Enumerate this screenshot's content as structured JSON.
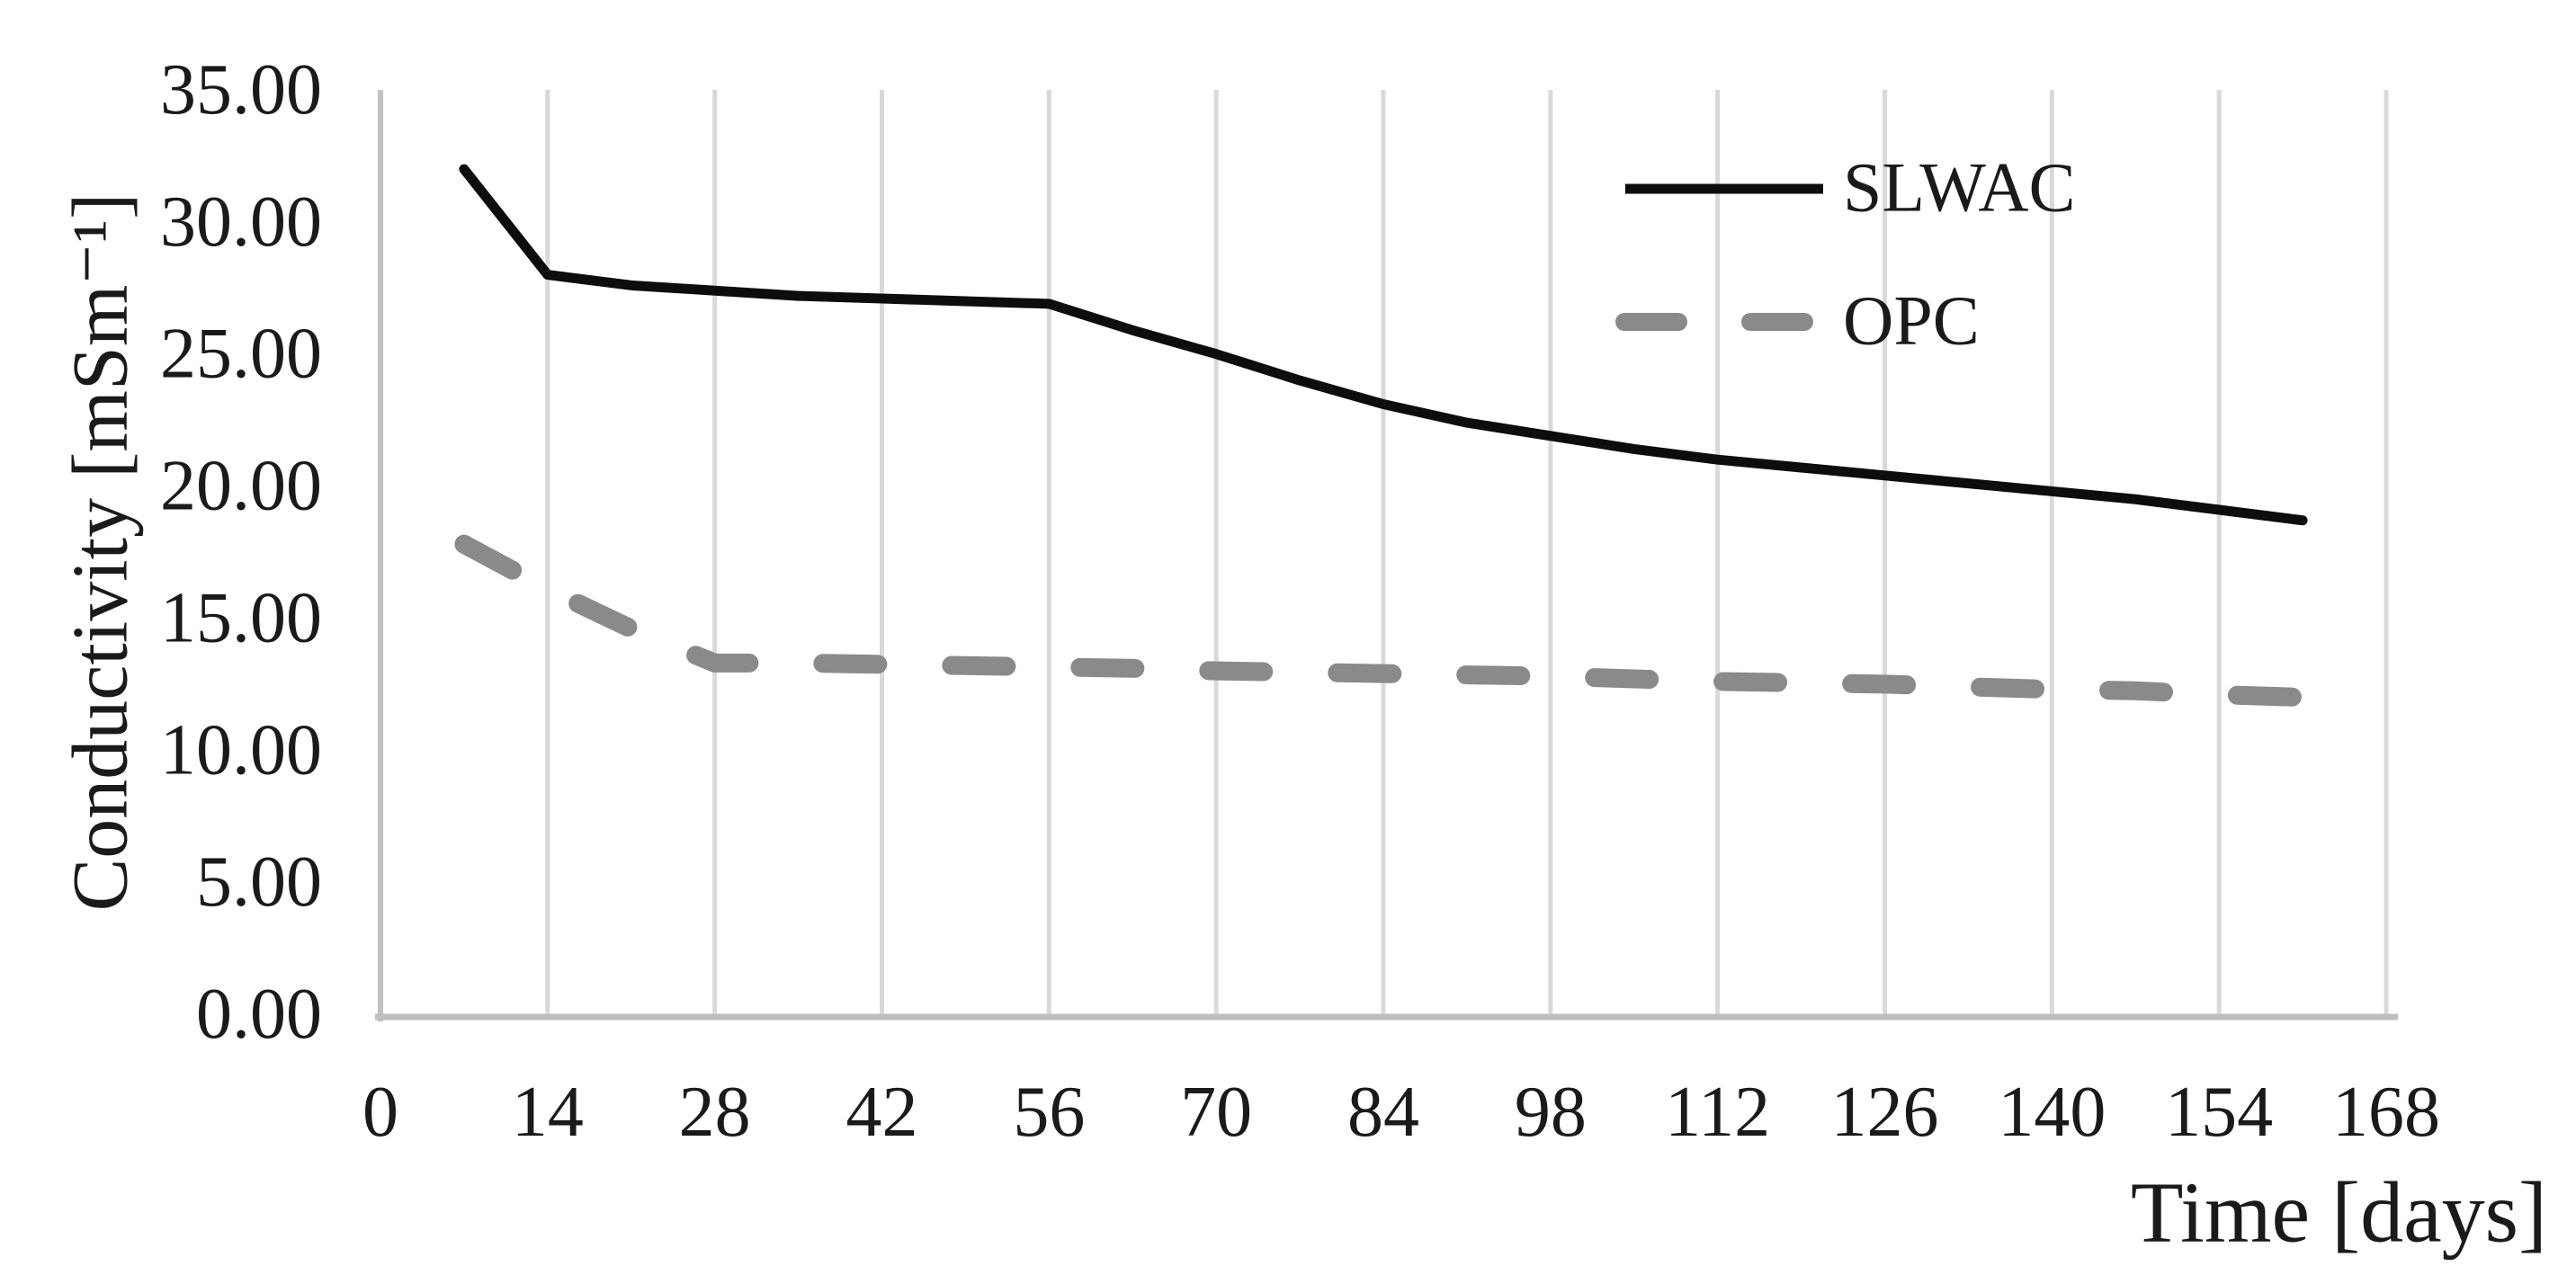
{
  "chart_data": {
    "type": "line",
    "title": "",
    "xlabel": "Time [days]",
    "ylabel": "Conductivity [mSm⁻¹]",
    "x": [
      7,
      14,
      21,
      28,
      35,
      42,
      49,
      56,
      63,
      70,
      77,
      84,
      91,
      98,
      105,
      112,
      119,
      126,
      133,
      140,
      147,
      154,
      161
    ],
    "series": [
      {
        "name": "SLWAC",
        "color": "#0d0d0d",
        "line_style": "solid",
        "values": [
          32.0,
          28.0,
          27.6,
          27.4,
          27.2,
          27.1,
          27.0,
          26.9,
          25.9,
          25.0,
          24.0,
          23.1,
          22.4,
          21.9,
          21.4,
          21.0,
          20.7,
          20.4,
          20.1,
          19.8,
          19.5,
          19.1,
          18.7
        ]
      },
      {
        "name": "OPC",
        "color": "#8a8a8a",
        "line_style": "dashed",
        "values": [
          17.8,
          16.1,
          14.6,
          13.3,
          13.3,
          13.25,
          13.2,
          13.15,
          13.1,
          13.0,
          12.95,
          12.9,
          12.85,
          12.8,
          12.7,
          12.6,
          12.55,
          12.5,
          12.4,
          12.3,
          12.25,
          12.1,
          12.0
        ]
      }
    ],
    "xlim": [
      0,
      168
    ],
    "ylim": [
      0,
      35
    ],
    "x_tick_labels": [
      "0",
      "14",
      "28",
      "42",
      "56",
      "70",
      "84",
      "98",
      "112",
      "126",
      "140",
      "154",
      "168"
    ],
    "y_tick_labels": [
      "0.00",
      "5.00",
      "10.00",
      "15.00",
      "20.00",
      "25.00",
      "30.00",
      "35.00"
    ],
    "grid": "vertical-only",
    "legend_position": "top-right",
    "colors": {
      "gridline": "#d9d9d9",
      "first_gridline": "#c2c2c2",
      "axis_line": "#bfbfbf",
      "text": "#1a1a1a"
    }
  }
}
